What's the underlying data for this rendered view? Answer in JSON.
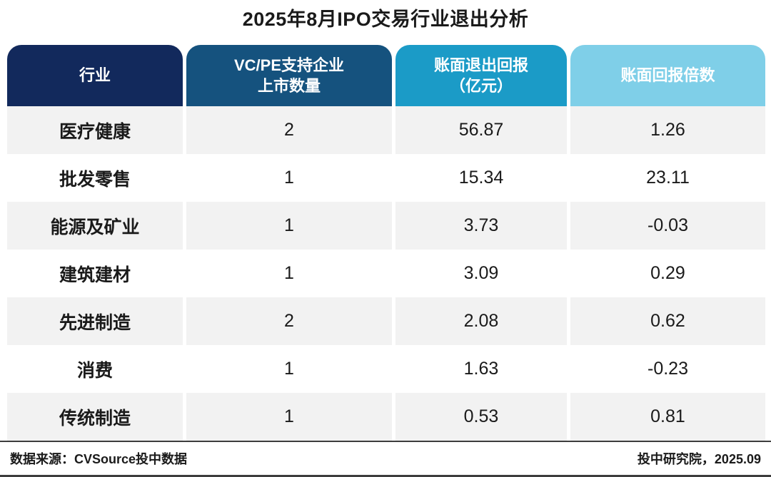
{
  "title": "2025年8月IPO交易行业退出分析",
  "chart_data": {
    "type": "table",
    "title": "2025年8月IPO交易行业退出分析",
    "columns": [
      "行业",
      "VC/PE支持企业\n上市数量",
      "账面退出回报\n（亿元）",
      "账面回报倍数"
    ],
    "header_colors": [
      "#12295c",
      "#15527e",
      "#1b9bc7",
      "#7fcfe8"
    ],
    "row_alt_color": "#f2f2f2",
    "rows": [
      [
        "医疗健康",
        "2",
        "56.87",
        "1.26"
      ],
      [
        "批发零售",
        "1",
        "15.34",
        "23.11"
      ],
      [
        "能源及矿业",
        "1",
        "3.73",
        "-0.03"
      ],
      [
        "建筑建材",
        "1",
        "3.09",
        "0.29"
      ],
      [
        "先进制造",
        "2",
        "2.08",
        "0.62"
      ],
      [
        "消费",
        "1",
        "1.63",
        "-0.23"
      ],
      [
        "传统制造",
        "1",
        "0.53",
        "0.81"
      ]
    ]
  },
  "footer": {
    "source_left": "数据来源：CVSource投中数据",
    "source_right": "投中研究院，2025.09"
  }
}
